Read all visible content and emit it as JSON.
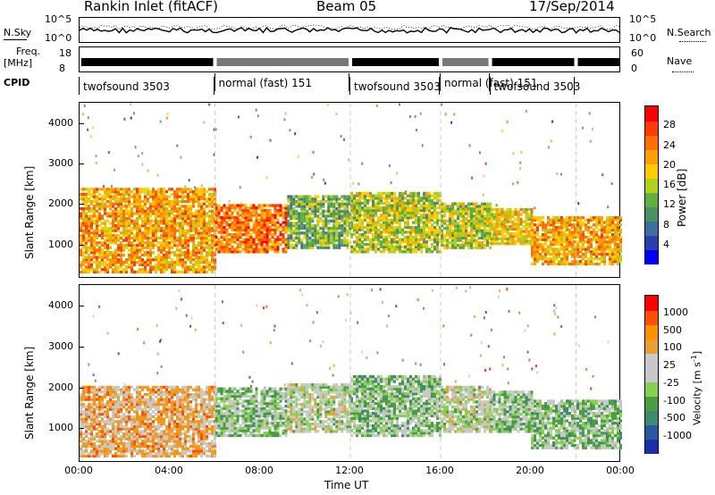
{
  "header": {
    "site": "Rankin Inlet (fitACF)",
    "beam": "Beam 05",
    "date": "17/Sep/2014"
  },
  "top_panels": {
    "nsky_label": "N.Sky",
    "nsky_ticks": [
      "10^5",
      "10^0"
    ],
    "nsearch_label": "N.Search",
    "freq_label": "Freq.",
    "freq_unit": "[MHz]",
    "freq_ticks": [
      "18",
      "8"
    ],
    "nave_label": "Nave",
    "nave_ticks": [
      "60",
      "0"
    ],
    "cpid_label": "CPID",
    "cpid_segments": [
      {
        "start": 0,
        "end": 6,
        "label": "twofsound 3503"
      },
      {
        "start": 6,
        "end": 12,
        "label": "normal (fast) 151"
      },
      {
        "start": 12,
        "end": 16,
        "label": "twofsound 3503"
      },
      {
        "start": 16,
        "end": 18.2,
        "label": "normal (fast) 151"
      },
      {
        "start": 18.2,
        "end": 22,
        "label": "twofsound 3503"
      }
    ]
  },
  "x_ticks": [
    "00:00",
    "04:00",
    "08:00",
    "12:00",
    "16:00",
    "20:00",
    "00:00"
  ],
  "x_label": "Time UT",
  "colors": {
    "power": [
      "#0000ff",
      "#2a3fae",
      "#3e6ea0",
      "#4a9060",
      "#5fb040",
      "#b0d020",
      "#ffcc00",
      "#ffa000",
      "#ff7000",
      "#ff3c00",
      "#ff0000"
    ],
    "velocity": [
      "#ff0000",
      "#ff5000",
      "#ff9000",
      "#e8a030",
      "#c8c8c8",
      "#c8c8c8",
      "#88d050",
      "#4aa040",
      "#3e8a70",
      "#2a58a0",
      "#1a2fa8"
    ]
  },
  "chart_data": [
    {
      "type": "heatmap",
      "name": "Power",
      "ylabel": "Slant Range [km]",
      "xlabel": "Time UT",
      "x_range": [
        0,
        24
      ],
      "ylim": [
        200,
        4500
      ],
      "y_ticks": [
        1000,
        2000,
        3000,
        4000
      ],
      "colorbar_label": "Power [dB]",
      "colorbar_ticks": [
        "28",
        "24",
        "20",
        "16",
        "12",
        "8",
        "4"
      ],
      "colorbar_range": [
        0,
        30
      ],
      "echo_bands": [
        {
          "start": 0,
          "end": 6,
          "low": 300,
          "high": 2400,
          "value": 22
        },
        {
          "start": 6,
          "end": 9.2,
          "low": 800,
          "high": 2000,
          "value": 24
        },
        {
          "start": 9.2,
          "end": 12,
          "low": 900,
          "high": 2200,
          "value": 12
        },
        {
          "start": 12,
          "end": 16,
          "low": 800,
          "high": 2300,
          "value": 16
        },
        {
          "start": 16,
          "end": 18.2,
          "low": 900,
          "high": 2000,
          "value": 14
        },
        {
          "start": 18.2,
          "end": 20,
          "low": 1000,
          "high": 1900,
          "value": 18
        },
        {
          "start": 20,
          "end": 24,
          "low": 500,
          "high": 1700,
          "value": 20
        }
      ]
    },
    {
      "type": "heatmap",
      "name": "Velocity",
      "ylabel": "Slant Range [km]",
      "xlabel": "Time UT",
      "x_range": [
        0,
        24
      ],
      "ylim": [
        200,
        4500
      ],
      "y_ticks": [
        1000,
        2000,
        3000,
        4000
      ],
      "colorbar_label": "Velocity [m s^-1]",
      "colorbar_ticks": [
        "1000",
        "500",
        "100",
        "25",
        "-25",
        "-100",
        "-500",
        "-1000"
      ],
      "echo_bands": [
        {
          "start": 0,
          "end": 6,
          "low": 300,
          "high": 2000,
          "value": 300
        },
        {
          "start": 6,
          "end": 9.2,
          "low": 800,
          "high": 2000,
          "value": -200
        },
        {
          "start": 9.2,
          "end": 12,
          "low": 900,
          "high": 2100,
          "value": -50
        },
        {
          "start": 12,
          "end": 16,
          "low": 800,
          "high": 2300,
          "value": -150
        },
        {
          "start": 16,
          "end": 18.2,
          "low": 900,
          "high": 2000,
          "value": 0
        },
        {
          "start": 18.2,
          "end": 20,
          "low": 900,
          "high": 1900,
          "value": -150
        },
        {
          "start": 20,
          "end": 24,
          "low": 500,
          "high": 1700,
          "value": -180
        }
      ]
    }
  ]
}
